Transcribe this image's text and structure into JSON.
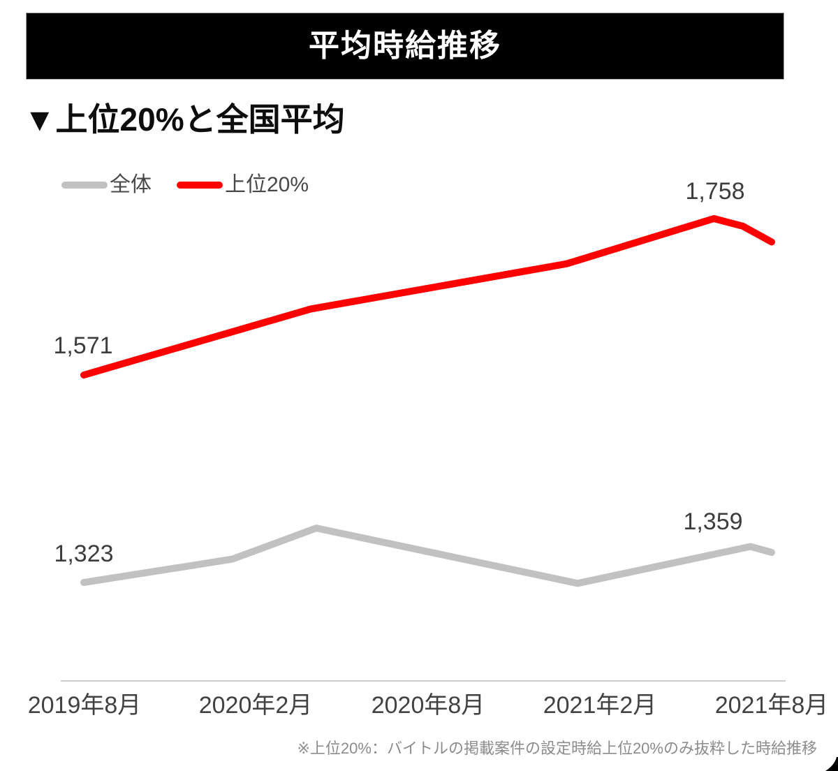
{
  "header": {
    "title": "平均時給推移"
  },
  "section": {
    "subtitle": "▼上位20%と全国平均"
  },
  "chart_data": {
    "type": "line",
    "title": "平均時給推移",
    "subtitle": "上位20%と全国平均",
    "x_tick_labels": [
      "2019年8月",
      "2020年2月",
      "2020年8月",
      "2021年2月",
      "2021年8月"
    ],
    "legend_position": "top-left",
    "grid": false,
    "y_axis_shown": false,
    "series": [
      {
        "name": "全体",
        "color": "#c1c1c1",
        "points": [
          {
            "x": 0.0,
            "value": 1323
          },
          {
            "x": 0.216,
            "value": 1351
          },
          {
            "x": 0.338,
            "value": 1388
          },
          {
            "x": 0.718,
            "value": 1322
          },
          {
            "x": 0.969,
            "value": 1366
          },
          {
            "x": 1.0,
            "value": 1359
          }
        ]
      },
      {
        "name": "上位20%",
        "color": "#ff0000",
        "points": [
          {
            "x": 0.0,
            "value": 1571
          },
          {
            "x": 0.33,
            "value": 1650
          },
          {
            "x": 0.702,
            "value": 1704
          },
          {
            "x": 0.916,
            "value": 1758
          },
          {
            "x": 0.958,
            "value": 1749
          },
          {
            "x": 1.0,
            "value": 1730
          }
        ]
      }
    ],
    "point_labels": [
      {
        "text": "1,571",
        "series": "上位20%",
        "at": "first"
      },
      {
        "text": "1,758",
        "series": "上位20%",
        "at": "peak"
      },
      {
        "text": "1,323",
        "series": "全体",
        "at": "first"
      },
      {
        "text": "1,359",
        "series": "全体",
        "at": "last"
      }
    ]
  },
  "footnote": "※上位20%：バイトルの掲載案件の設定時給上位20%のみ抜粋した時給推移"
}
